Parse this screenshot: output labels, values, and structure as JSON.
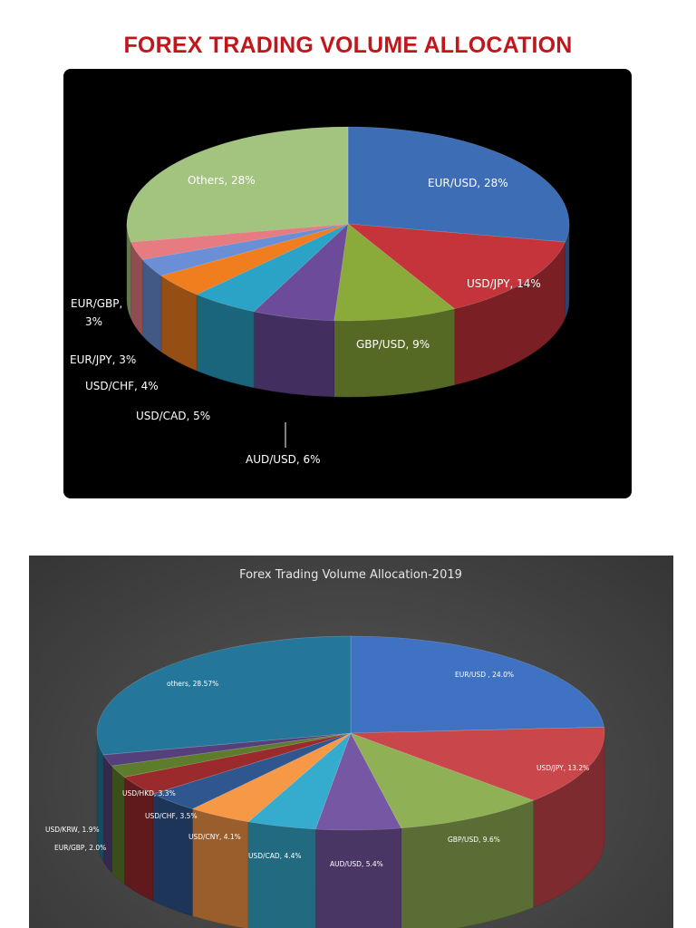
{
  "page": {
    "title": "FOREX TRADING VOLUME ALLOCATION"
  },
  "chart_data": [
    {
      "type": "pie",
      "title": "",
      "categories": [
        "EUR/USD",
        "USD/JPY",
        "GBP/USD",
        "AUD/USD",
        "USD/CAD",
        "USD/CHF",
        "EUR/JPY",
        "EUR/GBP",
        "Others"
      ],
      "values": [
        28,
        14,
        9,
        6,
        5,
        4,
        3,
        3,
        28
      ],
      "units": "%",
      "colors": [
        "#3d6eb5",
        "#c4343a",
        "#8aaa3a",
        "#6b4b9a",
        "#2aa3c6",
        "#f07d1e",
        "#6b8fd6",
        "#e67b82",
        "#a3c47f"
      ],
      "labels": [
        "EUR/USD, 28%",
        "USD/JPY, 14%",
        "GBP/USD, 9%",
        "AUD/USD, 6%",
        "USD/CAD, 5%",
        "USD/CHF, 4%",
        "EUR/JPY, 3%",
        "EUR/GBP,",
        "Others, 28%"
      ],
      "extra_labels": [
        "3%"
      ],
      "legend": "none"
    },
    {
      "type": "pie",
      "title": "Forex Trading Volume Allocation-2019",
      "categories": [
        "EUR/USD",
        "USD/JPY",
        "GBP/USD",
        "AUD/USD",
        "USD/CAD",
        "USD/CNY",
        "USD/CHF",
        "USD/HKD",
        "EUR/GBP",
        "USD/KRW",
        "others"
      ],
      "values": [
        24.0,
        13.2,
        9.6,
        5.4,
        4.4,
        4.1,
        3.5,
        3.3,
        2.0,
        1.9,
        28.57
      ],
      "units": "%",
      "colors": [
        "#3f72c2",
        "#c9464a",
        "#8fb054",
        "#7557a3",
        "#35abcd",
        "#f79846",
        "#2f568f",
        "#9b2a2c",
        "#5e7d2c",
        "#56407c",
        "#24779a"
      ],
      "labels": [
        "EUR/USD , 24.0%",
        "USD/JPY, 13.2%",
        "GBP/USD, 9.6%",
        "AUD/USD, 5.4%",
        "USD/CAD, 4.4%",
        "USD/CNY, 4.1%",
        "USD/CHF, 3.5%",
        "USD/HKD, 3.3%",
        "EUR/GBP, 2.0%",
        "USD/KRW, 1.9%",
        "others, 28.57%"
      ],
      "legend": "none"
    }
  ]
}
